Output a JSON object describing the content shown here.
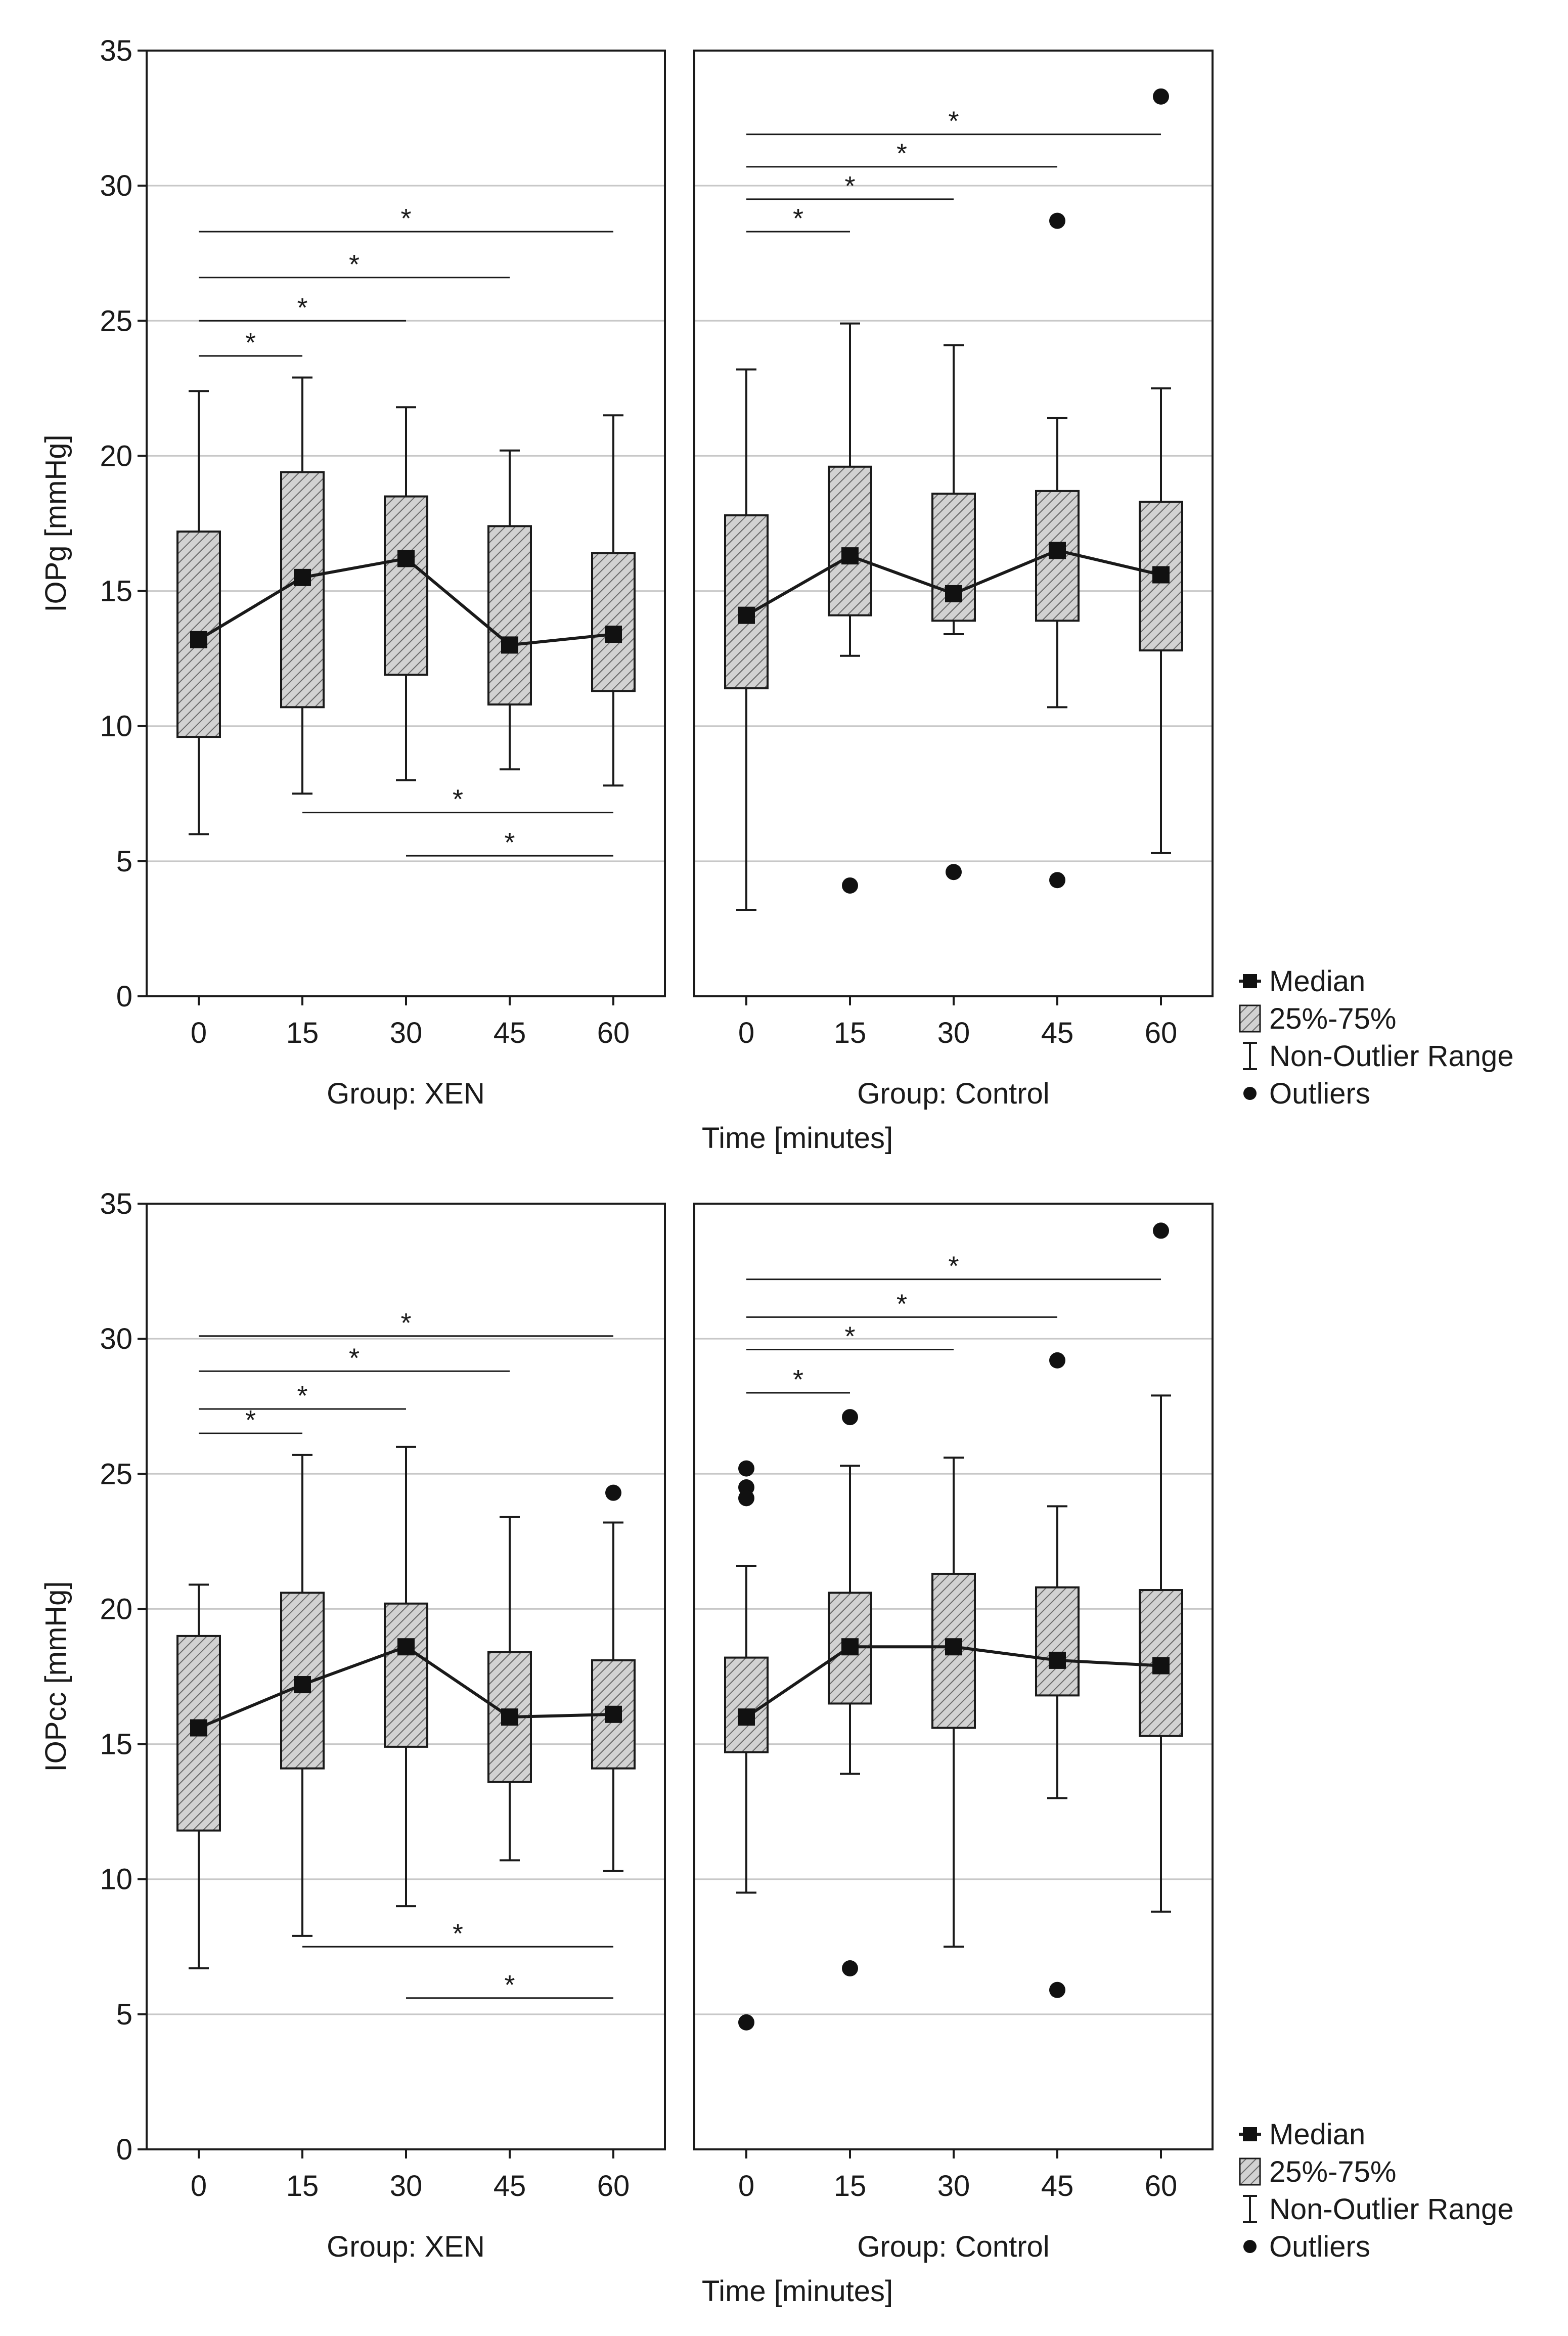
{
  "chart_data": [
    {
      "type": "boxplot",
      "ylabel": "IOPg [mmHg]",
      "xlabel": "Time [minutes]",
      "ylim": [
        0,
        35
      ],
      "yticks": [
        0,
        5,
        10,
        15,
        20,
        25,
        30,
        35
      ],
      "grid": true,
      "legend": {
        "placement": "bottom-right",
        "items": [
          {
            "symbol": "median",
            "label": "Median"
          },
          {
            "symbol": "box",
            "label": "25%-75%"
          },
          {
            "symbol": "whisker",
            "label": "Non-Outlier Range"
          },
          {
            "symbol": "outlier",
            "label": "Outliers"
          }
        ]
      },
      "panels": [
        {
          "group_label": "Group: XEN",
          "categories": [
            "0",
            "15",
            "30",
            "45",
            "60"
          ],
          "boxes": [
            {
              "min": 6.0,
              "q1": 9.6,
              "median": 13.2,
              "q3": 17.2,
              "max": 22.4
            },
            {
              "min": 7.5,
              "q1": 10.7,
              "median": 15.5,
              "q3": 19.4,
              "max": 22.9
            },
            {
              "min": 8.0,
              "q1": 11.9,
              "median": 16.2,
              "q3": 18.5,
              "max": 21.8
            },
            {
              "min": 8.4,
              "q1": 10.8,
              "median": 13.0,
              "q3": 17.4,
              "max": 20.2
            },
            {
              "min": 7.8,
              "q1": 11.3,
              "median": 13.4,
              "q3": 16.4,
              "max": 21.5
            }
          ],
          "outliers": [],
          "significance": [
            {
              "from": "0",
              "to": "15",
              "y": 23.7,
              "label": "*"
            },
            {
              "from": "0",
              "to": "30",
              "y": 25.0,
              "label": "*"
            },
            {
              "from": "0",
              "to": "45",
              "y": 26.6,
              "label": "*"
            },
            {
              "from": "0",
              "to": "60",
              "y": 28.3,
              "label": "*"
            },
            {
              "from": "15",
              "to": "60",
              "y": 6.8,
              "label": "*"
            },
            {
              "from": "30",
              "to": "60",
              "y": 5.2,
              "label": "*"
            }
          ]
        },
        {
          "group_label": "Group: Control",
          "categories": [
            "0",
            "15",
            "30",
            "45",
            "60"
          ],
          "boxes": [
            {
              "min": 3.2,
              "q1": 11.4,
              "median": 14.1,
              "q3": 17.8,
              "max": 23.2
            },
            {
              "min": 12.6,
              "q1": 14.1,
              "median": 16.3,
              "q3": 19.6,
              "max": 24.9
            },
            {
              "min": 13.4,
              "q1": 13.9,
              "median": 14.9,
              "q3": 18.6,
              "max": 24.1
            },
            {
              "min": 10.7,
              "q1": 13.9,
              "median": 16.5,
              "q3": 18.7,
              "max": 21.4
            },
            {
              "min": 5.3,
              "q1": 12.8,
              "median": 15.6,
              "q3": 18.3,
              "max": 22.5
            }
          ],
          "outliers": [
            {
              "x": "15",
              "y": 4.1
            },
            {
              "x": "30",
              "y": 4.6
            },
            {
              "x": "45",
              "y": 28.7
            },
            {
              "x": "45",
              "y": 4.3
            },
            {
              "x": "60",
              "y": 33.3
            }
          ],
          "significance": [
            {
              "from": "0",
              "to": "15",
              "y": 28.3,
              "label": "*"
            },
            {
              "from": "0",
              "to": "30",
              "y": 29.5,
              "label": "*"
            },
            {
              "from": "0",
              "to": "45",
              "y": 30.7,
              "label": "*"
            },
            {
              "from": "0",
              "to": "60",
              "y": 31.9,
              "label": "*"
            }
          ]
        }
      ]
    },
    {
      "type": "boxplot",
      "ylabel": "IOPcc [mmHg]",
      "xlabel": "Time [minutes]",
      "ylim": [
        0,
        35
      ],
      "yticks": [
        0,
        5,
        10,
        15,
        20,
        25,
        30,
        35
      ],
      "grid": true,
      "legend": {
        "placement": "bottom-right",
        "items": [
          {
            "symbol": "median",
            "label": "Median"
          },
          {
            "symbol": "box",
            "label": "25%-75%"
          },
          {
            "symbol": "whisker",
            "label": "Non-Outlier Range"
          },
          {
            "symbol": "outlier",
            "label": "Outliers"
          }
        ]
      },
      "panels": [
        {
          "group_label": "Group: XEN",
          "categories": [
            "0",
            "15",
            "30",
            "45",
            "60"
          ],
          "boxes": [
            {
              "min": 6.7,
              "q1": 11.8,
              "median": 15.6,
              "q3": 19.0,
              "max": 20.9
            },
            {
              "min": 7.9,
              "q1": 14.1,
              "median": 17.2,
              "q3": 20.6,
              "max": 25.7
            },
            {
              "min": 9.0,
              "q1": 14.9,
              "median": 18.6,
              "q3": 20.2,
              "max": 26.0
            },
            {
              "min": 10.7,
              "q1": 13.6,
              "median": 16.0,
              "q3": 18.4,
              "max": 23.4
            },
            {
              "min": 10.3,
              "q1": 14.1,
              "median": 16.1,
              "q3": 18.1,
              "max": 23.2
            }
          ],
          "outliers": [
            {
              "x": "60",
              "y": 24.3
            }
          ],
          "significance": [
            {
              "from": "0",
              "to": "15",
              "y": 26.5,
              "label": "*"
            },
            {
              "from": "0",
              "to": "30",
              "y": 27.4,
              "label": "*"
            },
            {
              "from": "0",
              "to": "45",
              "y": 28.8,
              "label": "*"
            },
            {
              "from": "0",
              "to": "60",
              "y": 30.1,
              "label": "*"
            },
            {
              "from": "15",
              "to": "60",
              "y": 7.5,
              "label": "*"
            },
            {
              "from": "30",
              "to": "60",
              "y": 5.6,
              "label": "*"
            }
          ]
        },
        {
          "group_label": "Group: Control",
          "categories": [
            "0",
            "15",
            "30",
            "45",
            "60"
          ],
          "boxes": [
            {
              "min": 9.5,
              "q1": 14.7,
              "median": 16.0,
              "q3": 18.2,
              "max": 21.6
            },
            {
              "min": 13.9,
              "q1": 16.5,
              "median": 18.6,
              "q3": 20.6,
              "max": 25.3
            },
            {
              "min": 7.5,
              "q1": 15.6,
              "median": 18.6,
              "q3": 21.3,
              "max": 25.6
            },
            {
              "min": 13.0,
              "q1": 16.8,
              "median": 18.1,
              "q3": 20.8,
              "max": 23.8
            },
            {
              "min": 8.8,
              "q1": 15.3,
              "median": 17.9,
              "q3": 20.7,
              "max": 27.9
            }
          ],
          "outliers": [
            {
              "x": "0",
              "y": 25.2
            },
            {
              "x": "0",
              "y": 24.5
            },
            {
              "x": "0",
              "y": 24.1
            },
            {
              "x": "0",
              "y": 4.7
            },
            {
              "x": "15",
              "y": 27.1
            },
            {
              "x": "15",
              "y": 6.7
            },
            {
              "x": "45",
              "y": 29.2
            },
            {
              "x": "45",
              "y": 5.9
            },
            {
              "x": "60",
              "y": 34.0
            }
          ],
          "significance": [
            {
              "from": "0",
              "to": "15",
              "y": 28.0,
              "label": "*"
            },
            {
              "from": "0",
              "to": "30",
              "y": 29.6,
              "label": "*"
            },
            {
              "from": "0",
              "to": "45",
              "y": 30.8,
              "label": "*"
            },
            {
              "from": "0",
              "to": "60",
              "y": 32.2,
              "label": "*"
            }
          ]
        }
      ]
    }
  ]
}
